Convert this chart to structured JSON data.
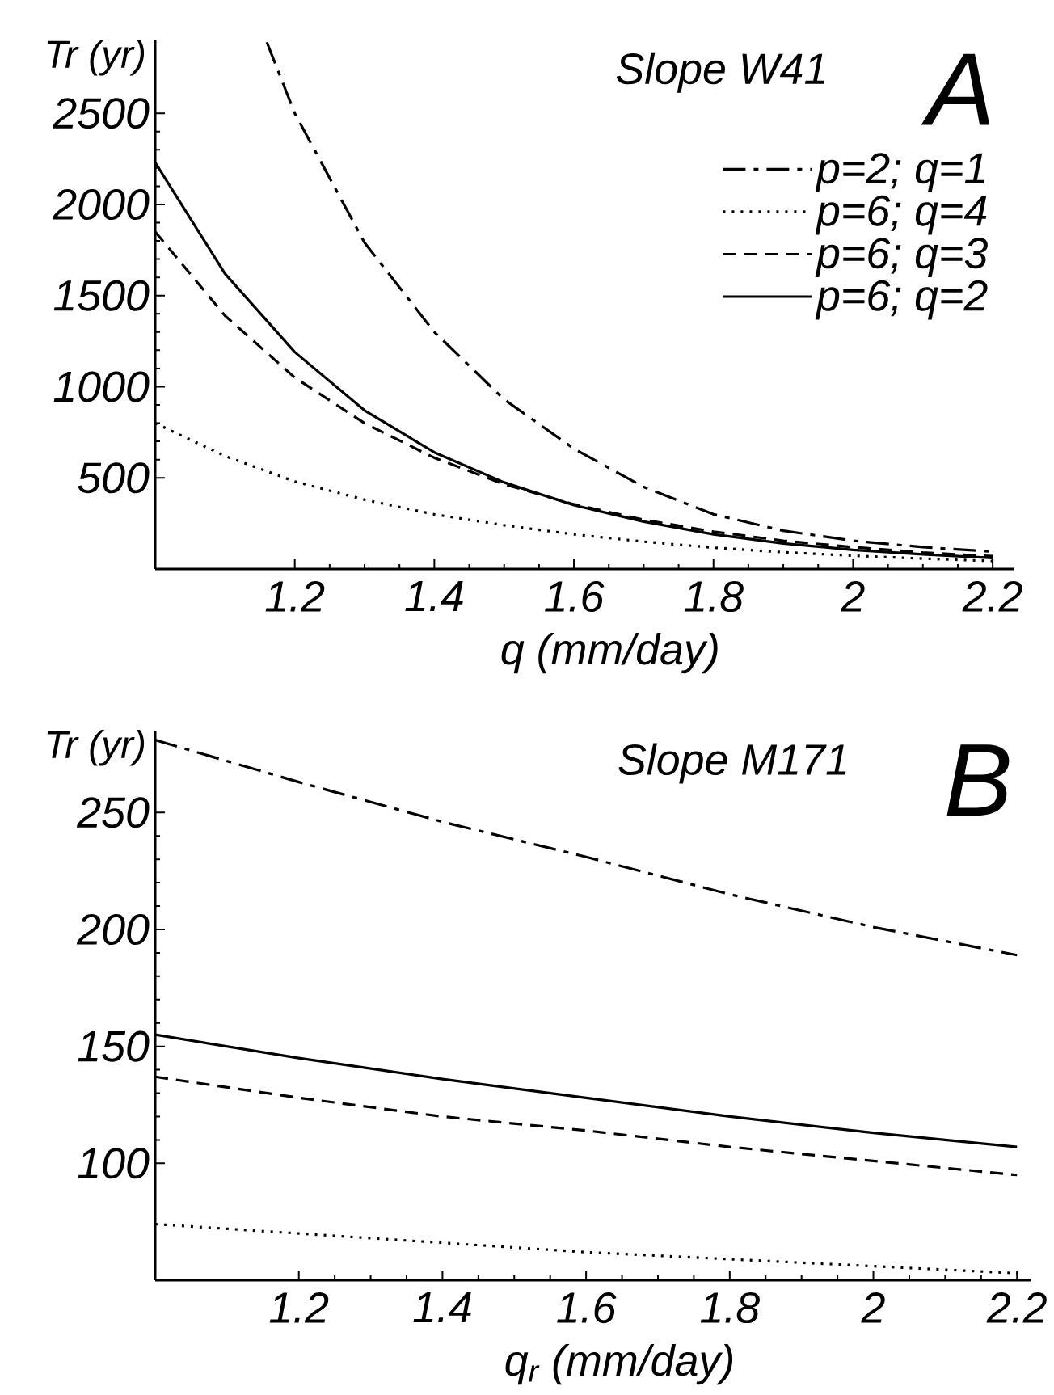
{
  "chart_data": [
    {
      "type": "line",
      "title": "Slope  W41",
      "xlabel": "q       (mm/day)",
      "ylabel": "Tr (yr)",
      "annotations": [
        "A"
      ],
      "x": [
        1.0,
        1.1,
        1.2,
        1.3,
        1.4,
        1.5,
        1.6,
        1.7,
        1.8,
        1.9,
        2.0,
        2.1,
        2.2
      ],
      "series": [
        {
          "name": "p=2; q=1",
          "color": "#000000",
          "line_style": "dashdot",
          "x": [
            1.16,
            1.2,
            1.3,
            1.4,
            1.5,
            1.6,
            1.7,
            1.8,
            1.9,
            2.0,
            2.1,
            2.2
          ],
          "values": [
            2890,
            2500,
            1790,
            1300,
            930,
            660,
            450,
            300,
            210,
            155,
            120,
            95
          ]
        },
        {
          "name": "p=6; q=4",
          "color": "#000000",
          "line_style": "dotted",
          "values": [
            800,
            620,
            480,
            380,
            300,
            240,
            190,
            150,
            117,
            92,
            73,
            57,
            44
          ]
        },
        {
          "name": "p=6; q=3",
          "color": "#000000",
          "line_style": "dashed",
          "values": [
            1850,
            1390,
            1050,
            800,
            610,
            465,
            355,
            270,
            205,
            155,
            120,
            90,
            70
          ]
        },
        {
          "name": "p=6; q=2",
          "color": "#000000",
          "line_style": "solid",
          "values": [
            2230,
            1620,
            1190,
            870,
            640,
            475,
            350,
            260,
            190,
            140,
            105,
            80,
            60
          ]
        }
      ],
      "xlim": [
        1,
        2.23
      ],
      "ylim": [
        0,
        2900
      ],
      "xticks": [
        1.2,
        1.4,
        1.6,
        1.8,
        2,
        2.2
      ],
      "yticks": [
        500,
        1000,
        1500,
        2000,
        2500
      ],
      "legend": "top right",
      "marker": "none"
    },
    {
      "type": "line",
      "title": "Slope  M171",
      "xlabel": "q$_{r}$      (mm/day)",
      "ylabel": "Tr (yr)",
      "annotations": [
        "B"
      ],
      "x": [
        1.0,
        1.2,
        1.4,
        1.6,
        1.8,
        2.0,
        2.2
      ],
      "series": [
        {
          "color": "#000000",
          "line_style": "dashdot",
          "values": [
            281,
            263,
            246,
            231,
            215,
            201,
            189
          ]
        },
        {
          "color": "#000000",
          "line_style": "dotted",
          "values": [
            74,
            70,
            66,
            62,
            59,
            56,
            53
          ]
        },
        {
          "color": "#000000",
          "line_style": "dashed",
          "values": [
            137,
            128,
            120,
            114,
            107,
            101,
            95
          ]
        },
        {
          "color": "#000000",
          "line_style": "solid",
          "values": [
            155,
            145,
            136,
            128,
            120,
            113,
            107
          ]
        }
      ],
      "xlim": [
        1,
        2.22
      ],
      "ylim": [
        50,
        285
      ],
      "xticks": [
        1.2,
        1.4,
        1.6,
        1.8,
        2,
        2.2
      ],
      "yticks": [
        100,
        150,
        200,
        250
      ],
      "marker": "none"
    }
  ]
}
